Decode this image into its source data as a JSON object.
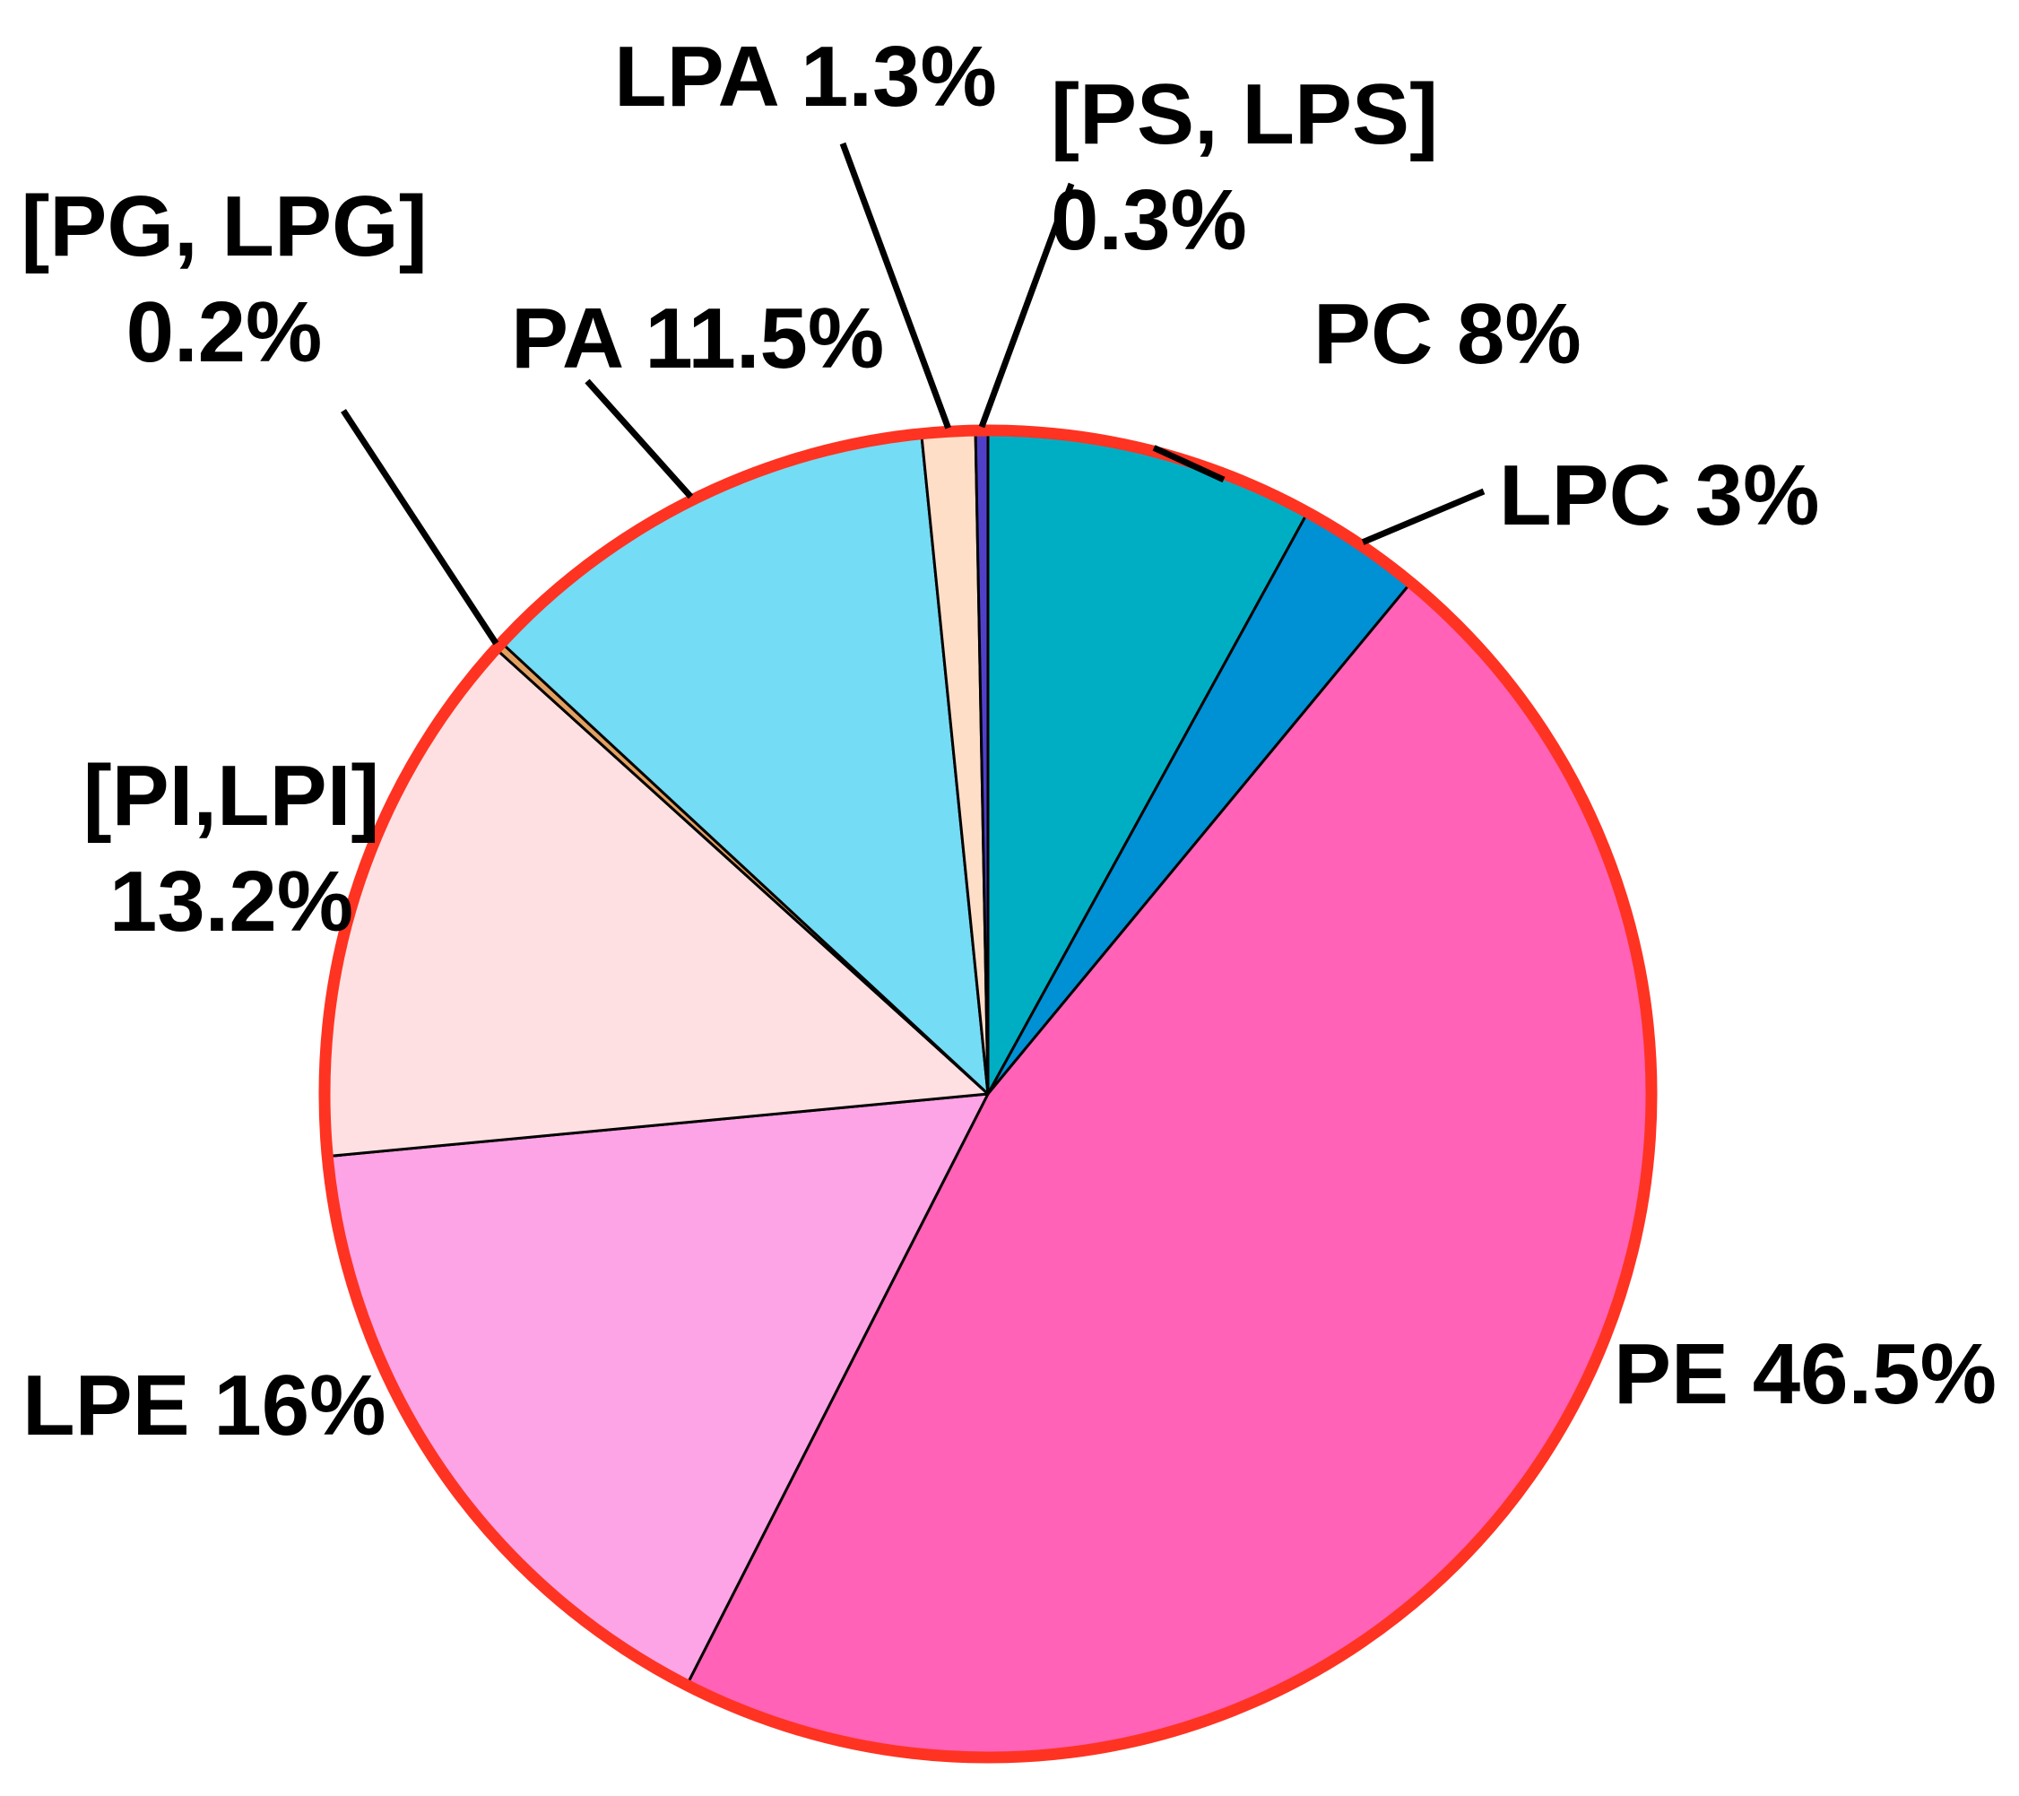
{
  "chart_data": {
    "type": "pie",
    "title": "",
    "start": "12 o'clock",
    "direction": "clockwise",
    "rim_color": "#ff3322",
    "series": [
      {
        "name": "PC",
        "value": 8,
        "color": "#00aec4",
        "label_lines": [
          "PC 8%"
        ]
      },
      {
        "name": "LPC",
        "value": 3,
        "color": "#0090d4",
        "label_lines": [
          "LPC 3%"
        ]
      },
      {
        "name": "PE",
        "value": 46.5,
        "color": "#ff62b6",
        "label_lines": [
          "PE 46.5%"
        ]
      },
      {
        "name": "LPE",
        "value": 16,
        "color": "#fda4e6",
        "label_lines": [
          "LPE 16%"
        ]
      },
      {
        "name": "[PI,LPI]",
        "value": 13.2,
        "color": "#ffe0e2",
        "label_lines": [
          "[PI,LPI]",
          "13.2%"
        ]
      },
      {
        "name": "[PG, LPG]",
        "value": 0.2,
        "color": "#e2a060",
        "label_lines": [
          "[PG, LPG]",
          "0.2%"
        ]
      },
      {
        "name": "PA",
        "value": 11.5,
        "color": "#74dcf4",
        "label_lines": [
          "PA 11.5%"
        ]
      },
      {
        "name": "LPA",
        "value": 1.3,
        "color": "#ffdec8",
        "label_lines": [
          "LPA 1.3%"
        ]
      },
      {
        "name": "[PS, LPS]",
        "value": 0.3,
        "color": "#5040c8",
        "label_lines": [
          "[PS, LPS]",
          "0.3%"
        ]
      }
    ]
  }
}
